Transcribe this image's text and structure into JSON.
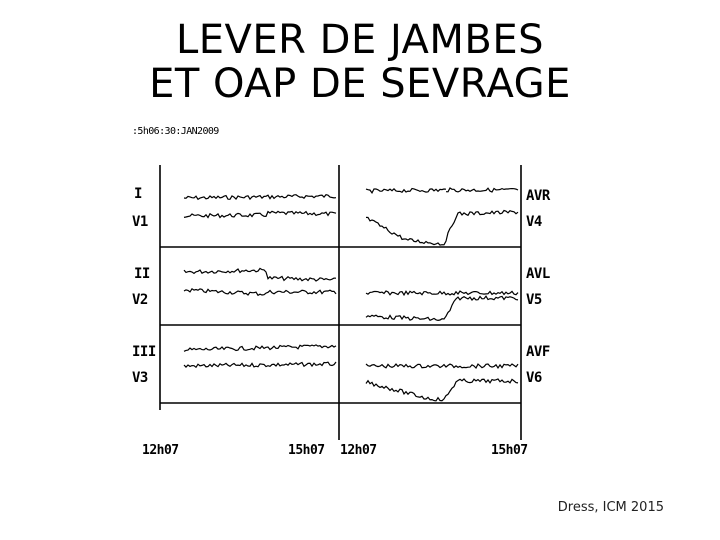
{
  "title": {
    "line1": "LEVER DE JAMBES",
    "line2": "ET OAP DE SEVRAGE"
  },
  "ecg": {
    "timestamp": ":5h06:30:JAN2009",
    "leads_left": [
      "I",
      "V1",
      "II",
      "V2",
      "III",
      "V3"
    ],
    "leads_right": [
      "AVR",
      "V4",
      "AVL",
      "V5",
      "AVF",
      "V6"
    ],
    "time_labels": [
      "12h07",
      "15h07",
      "12h07",
      "15h07"
    ]
  },
  "credit": "Dress, ICM 2015"
}
